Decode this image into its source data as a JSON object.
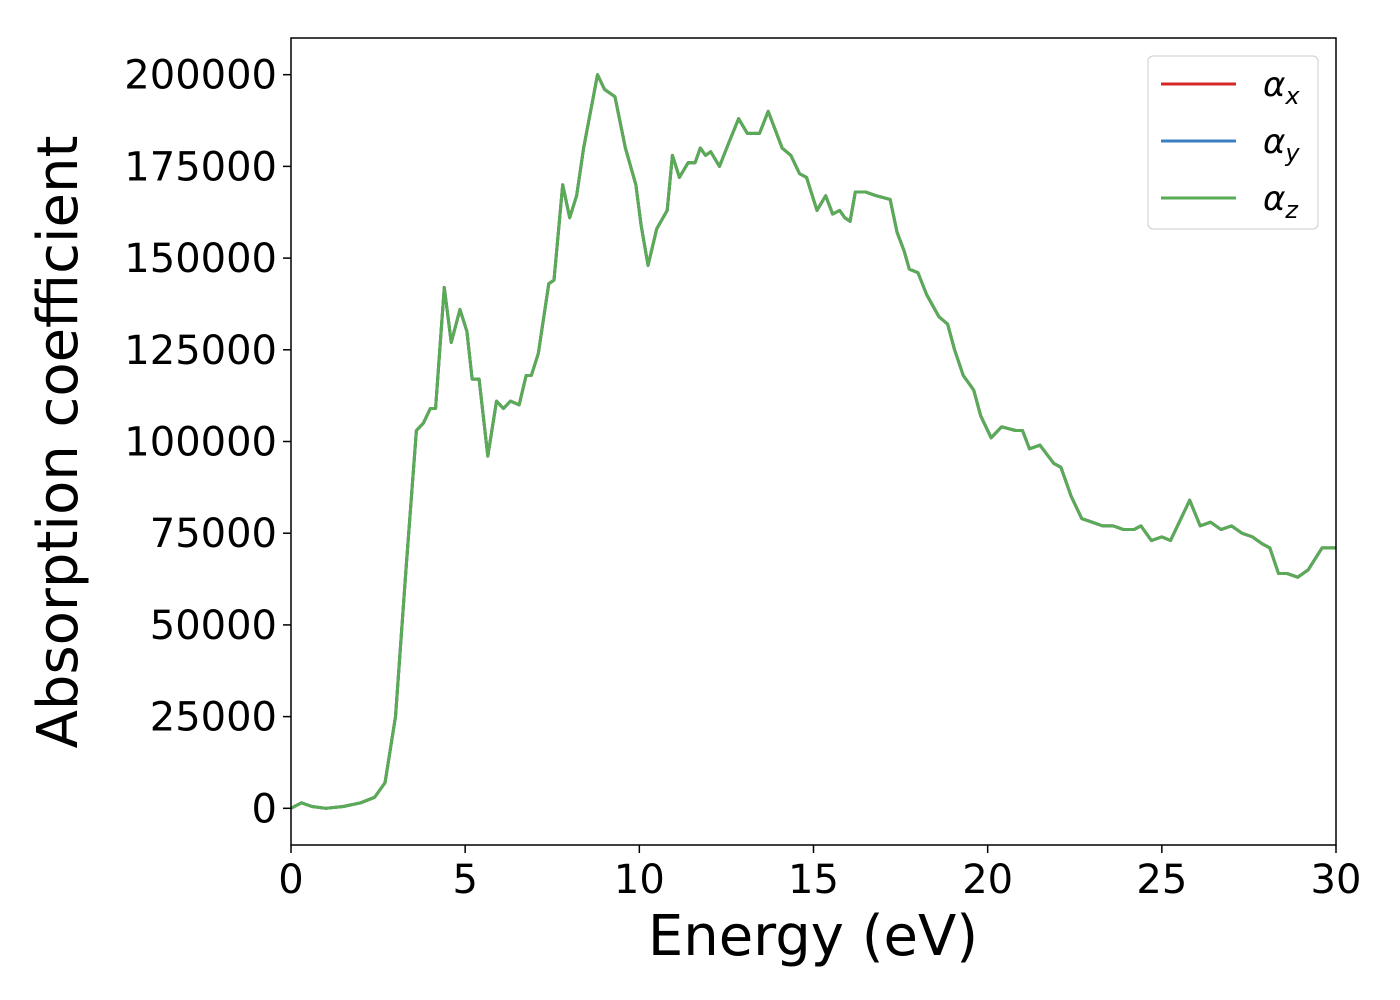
{
  "chart_data": {
    "type": "line",
    "x_label": "Energy (eV)",
    "y_label": "Absorption coefficient",
    "xlim": [
      0,
      30
    ],
    "xticks": [
      0,
      5,
      10,
      15,
      20,
      25,
      30
    ],
    "ylim": [
      -10000,
      210000
    ],
    "yticks": [
      0,
      25000,
      50000,
      75000,
      100000,
      125000,
      150000,
      175000,
      200000
    ],
    "grid": false,
    "legend": "upper right",
    "x": [
      0,
      0.3,
      0.6,
      1.0,
      1.5,
      2.0,
      2.4,
      2.7,
      3.0,
      3.3,
      3.6,
      3.8,
      4.0,
      4.15,
      4.4,
      4.6,
      4.85,
      5.05,
      5.2,
      5.4,
      5.65,
      5.9,
      6.1,
      6.3,
      6.55,
      6.75,
      6.9,
      7.1,
      7.4,
      7.55,
      7.8,
      8.0,
      8.2,
      8.4,
      8.6,
      8.8,
      9.0,
      9.3,
      9.6,
      9.9,
      10.05,
      10.25,
      10.5,
      10.8,
      10.95,
      11.15,
      11.4,
      11.6,
      11.75,
      11.9,
      12.05,
      12.3,
      12.55,
      12.85,
      13.1,
      13.3,
      13.45,
      13.7,
      13.9,
      14.1,
      14.35,
      14.6,
      14.8,
      15.1,
      15.35,
      15.55,
      15.75,
      15.9,
      16.05,
      16.2,
      16.5,
      16.8,
      17.2,
      17.4,
      17.6,
      17.75,
      18.0,
      18.25,
      18.6,
      18.85,
      19.05,
      19.3,
      19.6,
      19.8,
      20.1,
      20.4,
      20.8,
      21.0,
      21.2,
      21.5,
      21.9,
      22.1,
      22.4,
      22.7,
      23.0,
      23.3,
      23.6,
      23.9,
      24.2,
      24.4,
      24.7,
      25.0,
      25.25,
      25.5,
      25.8,
      26.1,
      26.4,
      26.7,
      27.0,
      27.3,
      27.6,
      27.9,
      28.1,
      28.35,
      28.6,
      28.9,
      29.2,
      29.6,
      30.0
    ],
    "series": [
      {
        "name": "αx",
        "color": "#d62728",
        "values": [
          0,
          1500,
          500,
          0,
          500,
          1500,
          3000,
          7000,
          25000,
          65000,
          103000,
          105000,
          109000,
          109000,
          142000,
          127000,
          136000,
          130000,
          117000,
          117000,
          96000,
          111000,
          109000,
          111000,
          110000,
          118000,
          118000,
          124000,
          143000,
          144000,
          170000,
          161000,
          167000,
          180000,
          190000,
          200000,
          196000,
          194000,
          180000,
          170000,
          159000,
          148000,
          158000,
          163000,
          178000,
          172000,
          176000,
          176000,
          180000,
          178000,
          179000,
          175000,
          181000,
          188000,
          184000,
          184000,
          184000,
          190000,
          185000,
          180000,
          178000,
          173000,
          172000,
          163000,
          167000,
          162000,
          163000,
          161000,
          160000,
          168000,
          168000,
          167000,
          166000,
          157000,
          152000,
          147000,
          146000,
          140000,
          134000,
          132000,
          125000,
          118000,
          114000,
          107000,
          101000,
          104000,
          103000,
          103000,
          98000,
          99000,
          94000,
          93000,
          85000,
          79000,
          78000,
          77000,
          77000,
          76000,
          76000,
          77000,
          73000,
          74000,
          73000,
          78000,
          84000,
          77000,
          78000,
          76000,
          77000,
          75000,
          74000,
          72000,
          71000,
          64000,
          64000,
          63000,
          65000,
          71000,
          71000
        ]
      },
      {
        "name": "αy",
        "color": "#3a7fbf",
        "values": [
          0,
          1500,
          500,
          0,
          500,
          1500,
          3000,
          7000,
          25000,
          65000,
          103000,
          105000,
          109000,
          109000,
          142000,
          127000,
          136000,
          130000,
          117000,
          117000,
          96000,
          111000,
          109000,
          111000,
          110000,
          118000,
          118000,
          124000,
          143000,
          144000,
          170000,
          161000,
          167000,
          180000,
          190000,
          200000,
          196000,
          194000,
          180000,
          170000,
          159000,
          148000,
          158000,
          163000,
          178000,
          172000,
          176000,
          176000,
          180000,
          178000,
          179000,
          175000,
          181000,
          188000,
          184000,
          184000,
          184000,
          190000,
          185000,
          180000,
          178000,
          173000,
          172000,
          163000,
          167000,
          162000,
          163000,
          161000,
          160000,
          168000,
          168000,
          167000,
          166000,
          157000,
          152000,
          147000,
          146000,
          140000,
          134000,
          132000,
          125000,
          118000,
          114000,
          107000,
          101000,
          104000,
          103000,
          103000,
          98000,
          99000,
          94000,
          93000,
          85000,
          79000,
          78000,
          77000,
          77000,
          76000,
          76000,
          77000,
          73000,
          74000,
          73000,
          78000,
          84000,
          77000,
          78000,
          76000,
          77000,
          75000,
          74000,
          72000,
          71000,
          64000,
          64000,
          63000,
          65000,
          71000,
          71000
        ]
      },
      {
        "name": "αz",
        "color": "#5aab55",
        "values": [
          0,
          1500,
          500,
          0,
          500,
          1500,
          3000,
          7000,
          25000,
          65000,
          103000,
          105000,
          109000,
          109000,
          142000,
          127000,
          136000,
          130000,
          117000,
          117000,
          96000,
          111000,
          109000,
          111000,
          110000,
          118000,
          118000,
          124000,
          143000,
          144000,
          170000,
          161000,
          167000,
          180000,
          190000,
          200000,
          196000,
          194000,
          180000,
          170000,
          159000,
          148000,
          158000,
          163000,
          178000,
          172000,
          176000,
          176000,
          180000,
          178000,
          179000,
          175000,
          181000,
          188000,
          184000,
          184000,
          184000,
          190000,
          185000,
          180000,
          178000,
          173000,
          172000,
          163000,
          167000,
          162000,
          163000,
          161000,
          160000,
          168000,
          168000,
          167000,
          166000,
          157000,
          152000,
          147000,
          146000,
          140000,
          134000,
          132000,
          125000,
          118000,
          114000,
          107000,
          101000,
          104000,
          103000,
          103000,
          98000,
          99000,
          94000,
          93000,
          85000,
          79000,
          78000,
          77000,
          77000,
          76000,
          76000,
          77000,
          73000,
          74000,
          73000,
          78000,
          84000,
          77000,
          78000,
          76000,
          77000,
          75000,
          74000,
          72000,
          71000,
          64000,
          64000,
          63000,
          65000,
          71000,
          71000
        ]
      }
    ]
  }
}
